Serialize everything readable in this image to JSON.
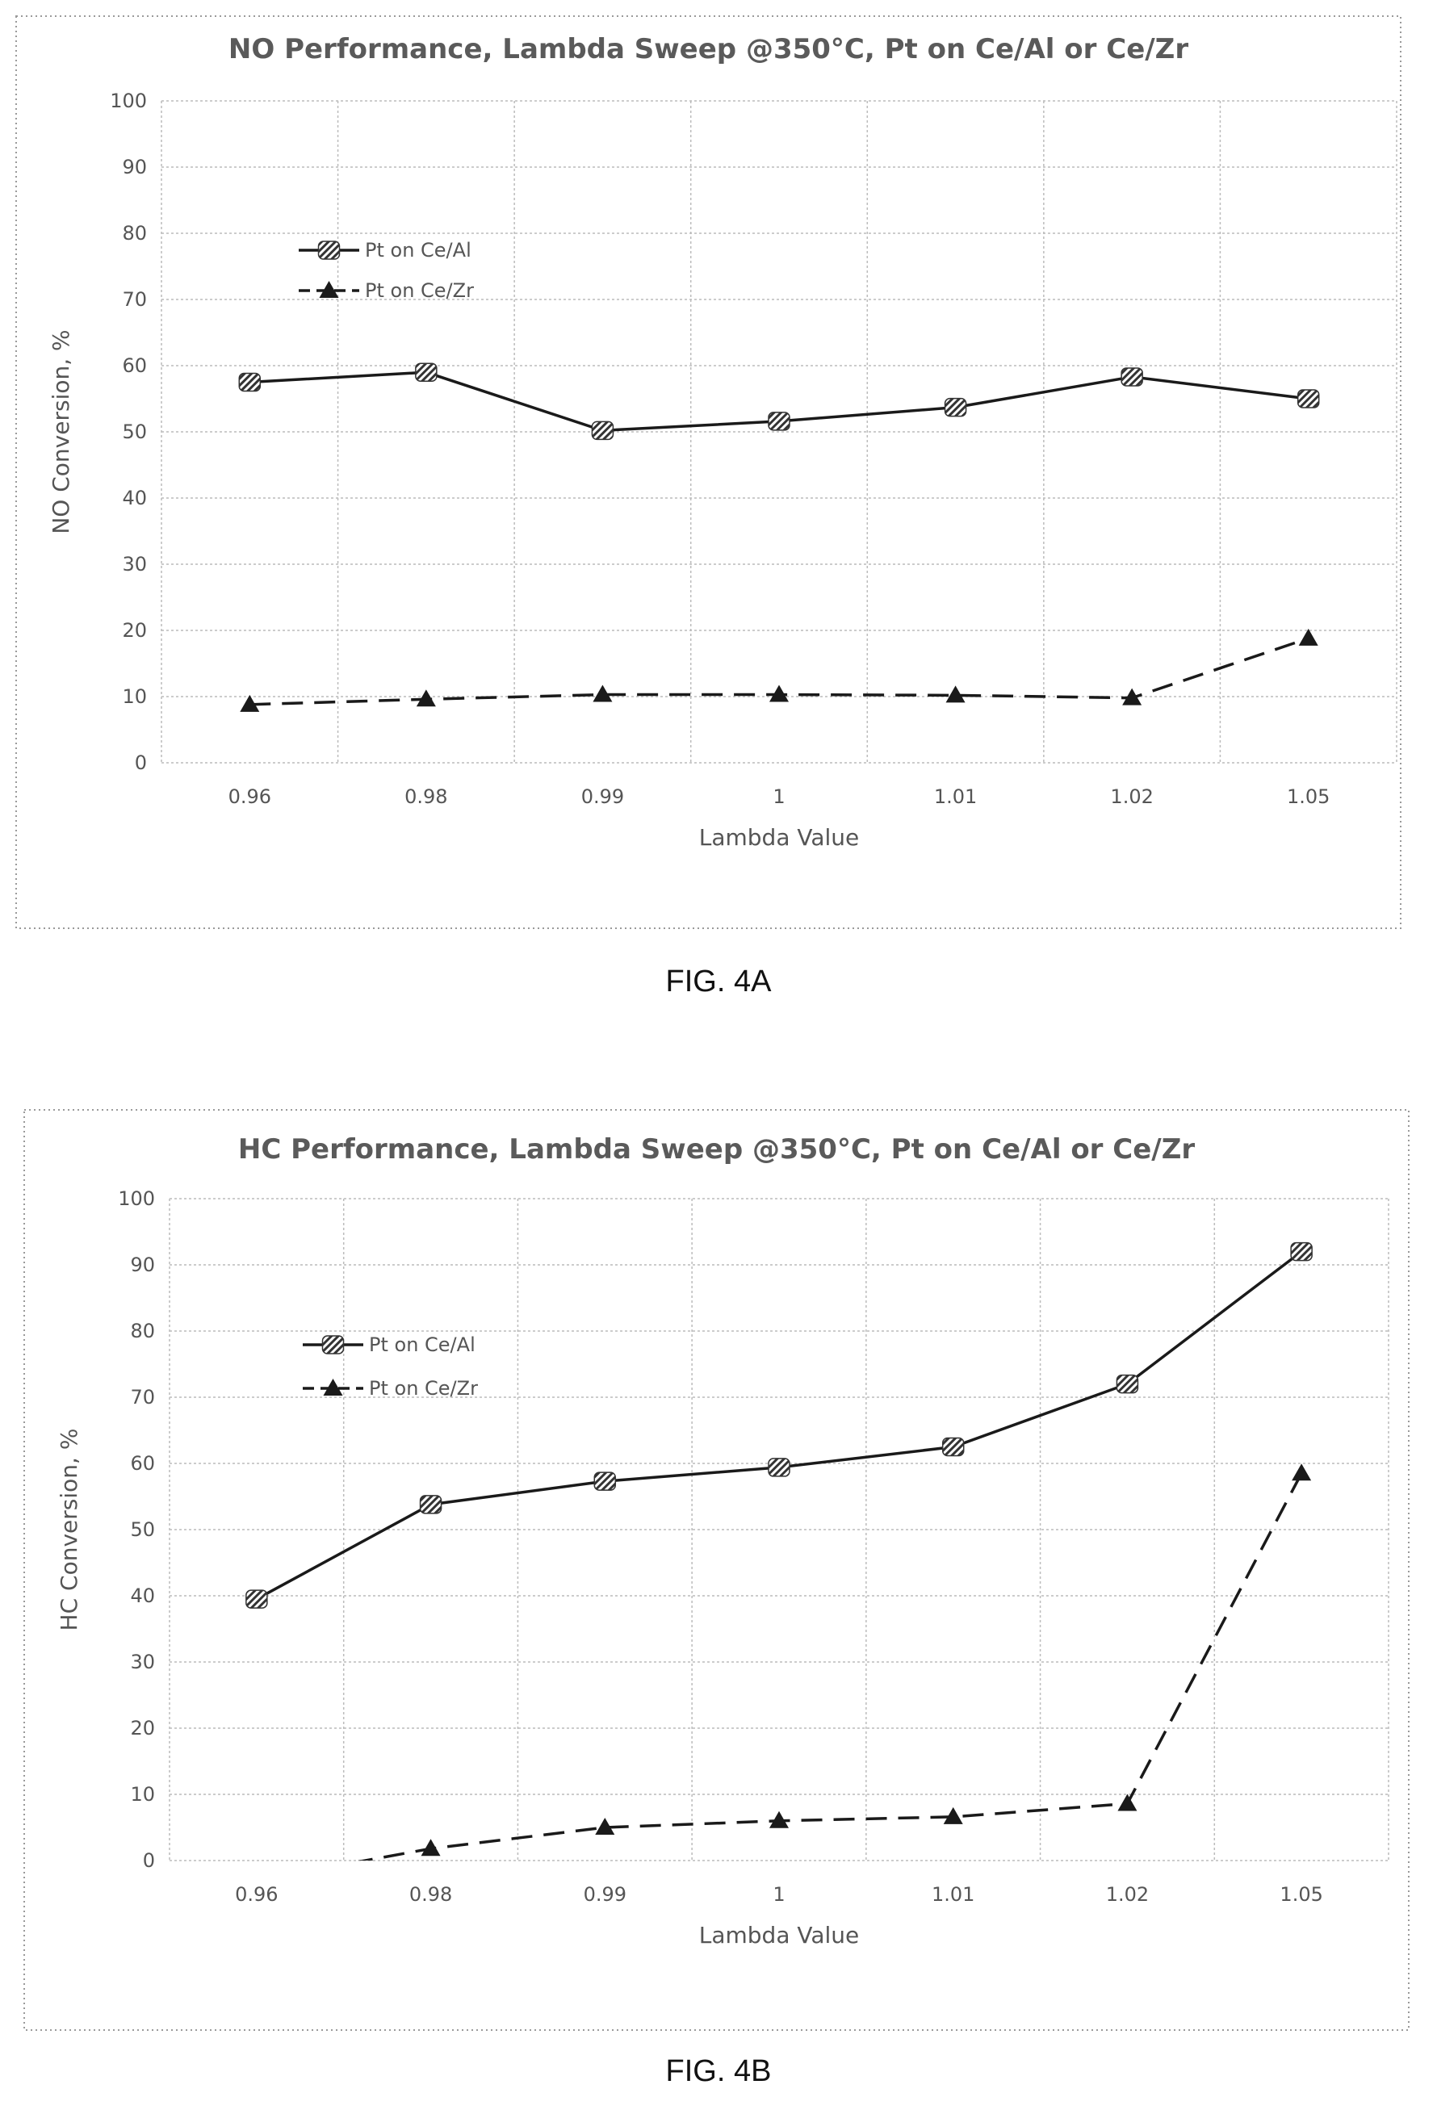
{
  "captions": [
    "FIG. 4A",
    "FIG. 4B"
  ],
  "colors": {
    "series_line": "#1a1a1a",
    "grid": "#bcbcbc",
    "frame": "#9a9a9a",
    "text": "#555555"
  },
  "chart_data": [
    {
      "type": "line",
      "title": "NO Performance, Lambda Sweep @350°C, Pt on Ce/Al or Ce/Zr",
      "xlabel": "Lambda Value",
      "ylabel": "NO Conversion,  %",
      "categories": [
        "0.96",
        "0.98",
        "0.99",
        "1",
        "1.01",
        "1.02",
        "1.05"
      ],
      "y_ticks": [
        "0",
        "10",
        "20",
        "30",
        "40",
        "50",
        "60",
        "70",
        "80",
        "90",
        "100"
      ],
      "ylim": [
        0,
        100
      ],
      "grid": true,
      "legend_position": "upper-left",
      "series": [
        {
          "name": "Pt on Ce/Al",
          "marker": "hatched-square",
          "style": "solid",
          "values": [
            57.5,
            59,
            50.2,
            51.6,
            53.7,
            58.3,
            55
          ]
        },
        {
          "name": "Pt on Ce/Zr",
          "marker": "triangle",
          "style": "dashed",
          "values": [
            8.8,
            9.6,
            10.3,
            10.3,
            10.2,
            9.8,
            18.8
          ]
        }
      ]
    },
    {
      "type": "line",
      "title": "HC Performance, Lambda Sweep @350°C, Pt on Ce/Al or Ce/Zr",
      "xlabel": "Lambda Value",
      "ylabel": "HC Conversion,  %",
      "categories": [
        "0.96",
        "0.98",
        "0.99",
        "1",
        "1.01",
        "1.02",
        "1.05"
      ],
      "y_ticks": [
        "0",
        "10",
        "20",
        "30",
        "40",
        "50",
        "60",
        "70",
        "80",
        "90",
        "100"
      ],
      "ylim": [
        0,
        100
      ],
      "grid": true,
      "legend_position": "upper-left",
      "series": [
        {
          "name": "Pt on Ce/Al",
          "marker": "hatched-square",
          "style": "solid",
          "values": [
            39.5,
            53.8,
            57.3,
            59.4,
            62.5,
            72,
            92
          ]
        },
        {
          "name": "Pt on Ce/Zr",
          "marker": "triangle",
          "style": "dashed",
          "values": [
            -3,
            1.8,
            5,
            6,
            6.6,
            8.6,
            58.5
          ]
        }
      ]
    }
  ]
}
